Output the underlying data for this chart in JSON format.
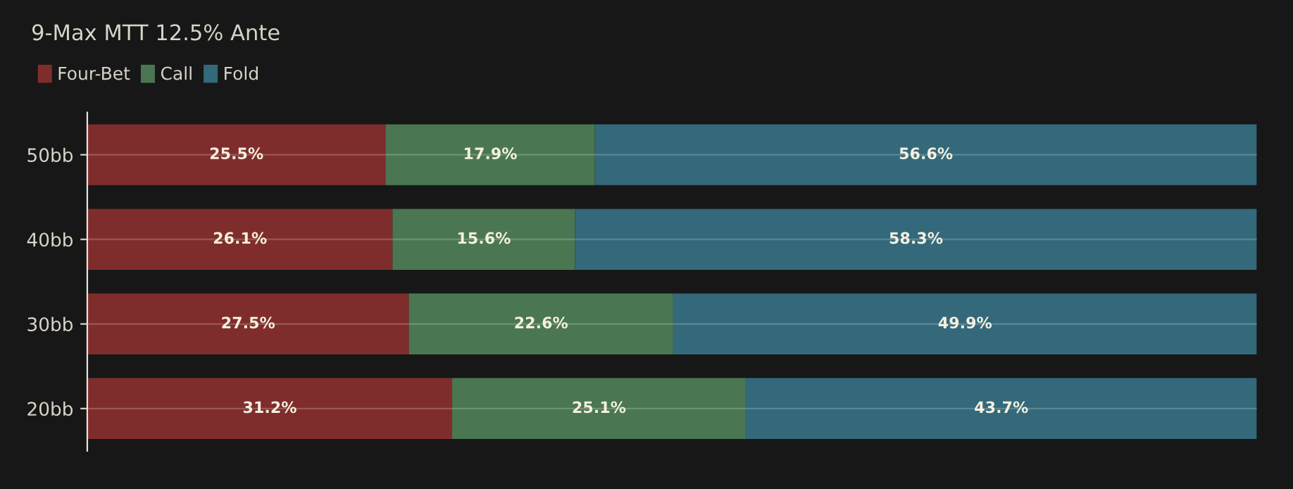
{
  "chart_data": {
    "type": "bar",
    "orientation": "horizontal",
    "stacked": true,
    "title": "9-Max MTT 12.5% Ante",
    "categories": [
      "50bb",
      "40bb",
      "30bb",
      "20bb"
    ],
    "series": [
      {
        "name": "Four-Bet",
        "color": "#7f2d2c",
        "values": [
          25.5,
          26.1,
          27.5,
          31.2
        ],
        "value_labels": [
          "25.5%",
          "26.1%",
          "27.5%",
          "31.2%"
        ]
      },
      {
        "name": "Call",
        "color": "#4a7751",
        "values": [
          17.9,
          15.6,
          22.6,
          25.1
        ],
        "value_labels": [
          "17.9%",
          "15.6%",
          "22.6%",
          "25.1%"
        ]
      },
      {
        "name": "Fold",
        "color": "#33697a",
        "values": [
          56.6,
          58.3,
          49.9,
          43.7
        ],
        "value_labels": [
          "56.6%",
          "58.3%",
          "49.9%",
          "43.7%"
        ]
      }
    ],
    "legend": "top left",
    "grid": "y",
    "tick_labels": "y"
  }
}
